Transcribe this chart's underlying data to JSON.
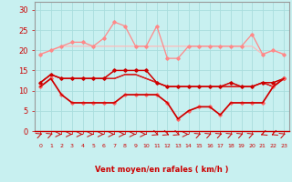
{
  "x": [
    0,
    1,
    2,
    3,
    4,
    5,
    6,
    7,
    8,
    9,
    10,
    11,
    12,
    13,
    14,
    15,
    16,
    17,
    18,
    19,
    20,
    21,
    22,
    23
  ],
  "series": [
    {
      "values": [
        19,
        20,
        21,
        21,
        21,
        21,
        21,
        21,
        21,
        21,
        21,
        21,
        21,
        21,
        21,
        21,
        21,
        21,
        21,
        21,
        21,
        19,
        20,
        19
      ],
      "color": "#ffbbbb",
      "lw": 0.9,
      "marker": null,
      "ms": 0
    },
    {
      "values": [
        19,
        20,
        21,
        22,
        22,
        21,
        23,
        27,
        26,
        21,
        21,
        26,
        18,
        18,
        21,
        21,
        21,
        21,
        21,
        21,
        24,
        19,
        20,
        19
      ],
      "color": "#ff8888",
      "lw": 0.9,
      "marker": "D",
      "ms": 1.8
    },
    {
      "values": [
        12,
        14,
        13,
        13,
        13,
        13,
        13,
        13,
        14,
        14,
        13,
        12,
        11,
        11,
        11,
        11,
        11,
        11,
        11,
        11,
        11,
        12,
        11,
        13
      ],
      "color": "#cc0000",
      "lw": 1.0,
      "marker": null,
      "ms": 0
    },
    {
      "values": [
        12,
        14,
        13,
        13,
        13,
        13,
        13,
        13,
        14,
        14,
        13,
        12,
        11,
        11,
        11,
        11,
        11,
        11,
        11,
        11,
        11,
        12,
        11,
        13
      ],
      "color": "#dd2222",
      "lw": 0.8,
      "marker": null,
      "ms": 0
    },
    {
      "values": [
        12,
        14,
        13,
        13,
        13,
        13,
        13,
        15,
        15,
        15,
        15,
        12,
        11,
        11,
        11,
        11,
        11,
        11,
        12,
        11,
        11,
        12,
        12,
        13
      ],
      "color": "#ee4444",
      "lw": 0.8,
      "marker": null,
      "ms": 0
    },
    {
      "values": [
        12,
        14,
        13,
        13,
        13,
        13,
        13,
        15,
        15,
        15,
        15,
        12,
        11,
        11,
        11,
        11,
        11,
        11,
        12,
        11,
        11,
        12,
        12,
        13
      ],
      "color": "#cc0000",
      "lw": 1.0,
      "marker": "D",
      "ms": 1.8
    },
    {
      "values": [
        11,
        13,
        9,
        7,
        7,
        7,
        7,
        7,
        9,
        9,
        9,
        9,
        7,
        3,
        5,
        6,
        6,
        4,
        7,
        7,
        7,
        7,
        11,
        13
      ],
      "color": "#ff6666",
      "lw": 0.9,
      "marker": "D",
      "ms": 1.8
    },
    {
      "values": [
        11,
        13,
        9,
        7,
        7,
        7,
        7,
        7,
        9,
        9,
        9,
        9,
        7,
        3,
        5,
        6,
        6,
        4,
        7,
        7,
        7,
        7,
        11,
        13
      ],
      "color": "#cc0000",
      "lw": 1.2,
      "marker": null,
      "ms": 0
    }
  ],
  "arrow_angles": [
    225,
    225,
    270,
    270,
    270,
    270,
    270,
    270,
    270,
    270,
    270,
    315,
    315,
    315,
    270,
    225,
    225,
    225,
    225,
    225,
    225,
    45,
    45,
    225
  ],
  "xlabel": "Vent moyen/en rafales ( km/h )",
  "yticks": [
    0,
    5,
    10,
    15,
    20,
    25,
    30
  ],
  "xlim": [
    -0.5,
    23.5
  ],
  "ylim": [
    0,
    32
  ],
  "bg_color": "#c8f0f0",
  "grid_color": "#aadddd",
  "line_color": "#cc0000",
  "tick_color": "#cc0000",
  "label_color": "#cc0000"
}
